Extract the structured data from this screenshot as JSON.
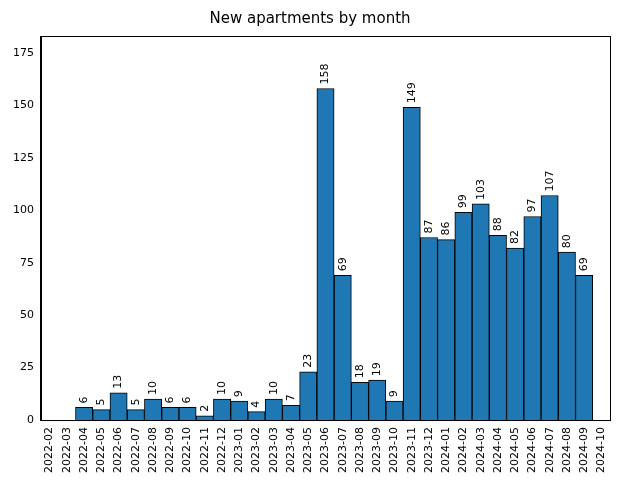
{
  "chart_data": {
    "type": "bar",
    "title": "New apartments by month",
    "categories": [
      "2022-02",
      "2022-03",
      "2022-04",
      "2022-05",
      "2022-06",
      "2022-07",
      "2022-08",
      "2022-09",
      "2022-10",
      "2022-11",
      "2022-12",
      "2023-01",
      "2023-02",
      "2023-03",
      "2023-04",
      "2023-05",
      "2023-06",
      "2023-07",
      "2023-08",
      "2023-09",
      "2023-10",
      "2023-11",
      "2023-12",
      "2024-01",
      "2024-02",
      "2024-03",
      "2024-04",
      "2024-05",
      "2024-06",
      "2024-07",
      "2024-08",
      "2024-09",
      "2024-10"
    ],
    "values": [
      null,
      null,
      6,
      5,
      13,
      5,
      10,
      6,
      6,
      2,
      10,
      9,
      4,
      10,
      7,
      23,
      158,
      69,
      18,
      19,
      9,
      149,
      87,
      86,
      99,
      103,
      88,
      82,
      97,
      107,
      80,
      69,
      null
    ],
    "color": "#1f77b4",
    "ylim": [
      0,
      183
    ],
    "yticks": [
      0,
      25,
      50,
      75,
      100,
      125,
      150,
      175
    ],
    "grid": false,
    "data_labels": true
  }
}
